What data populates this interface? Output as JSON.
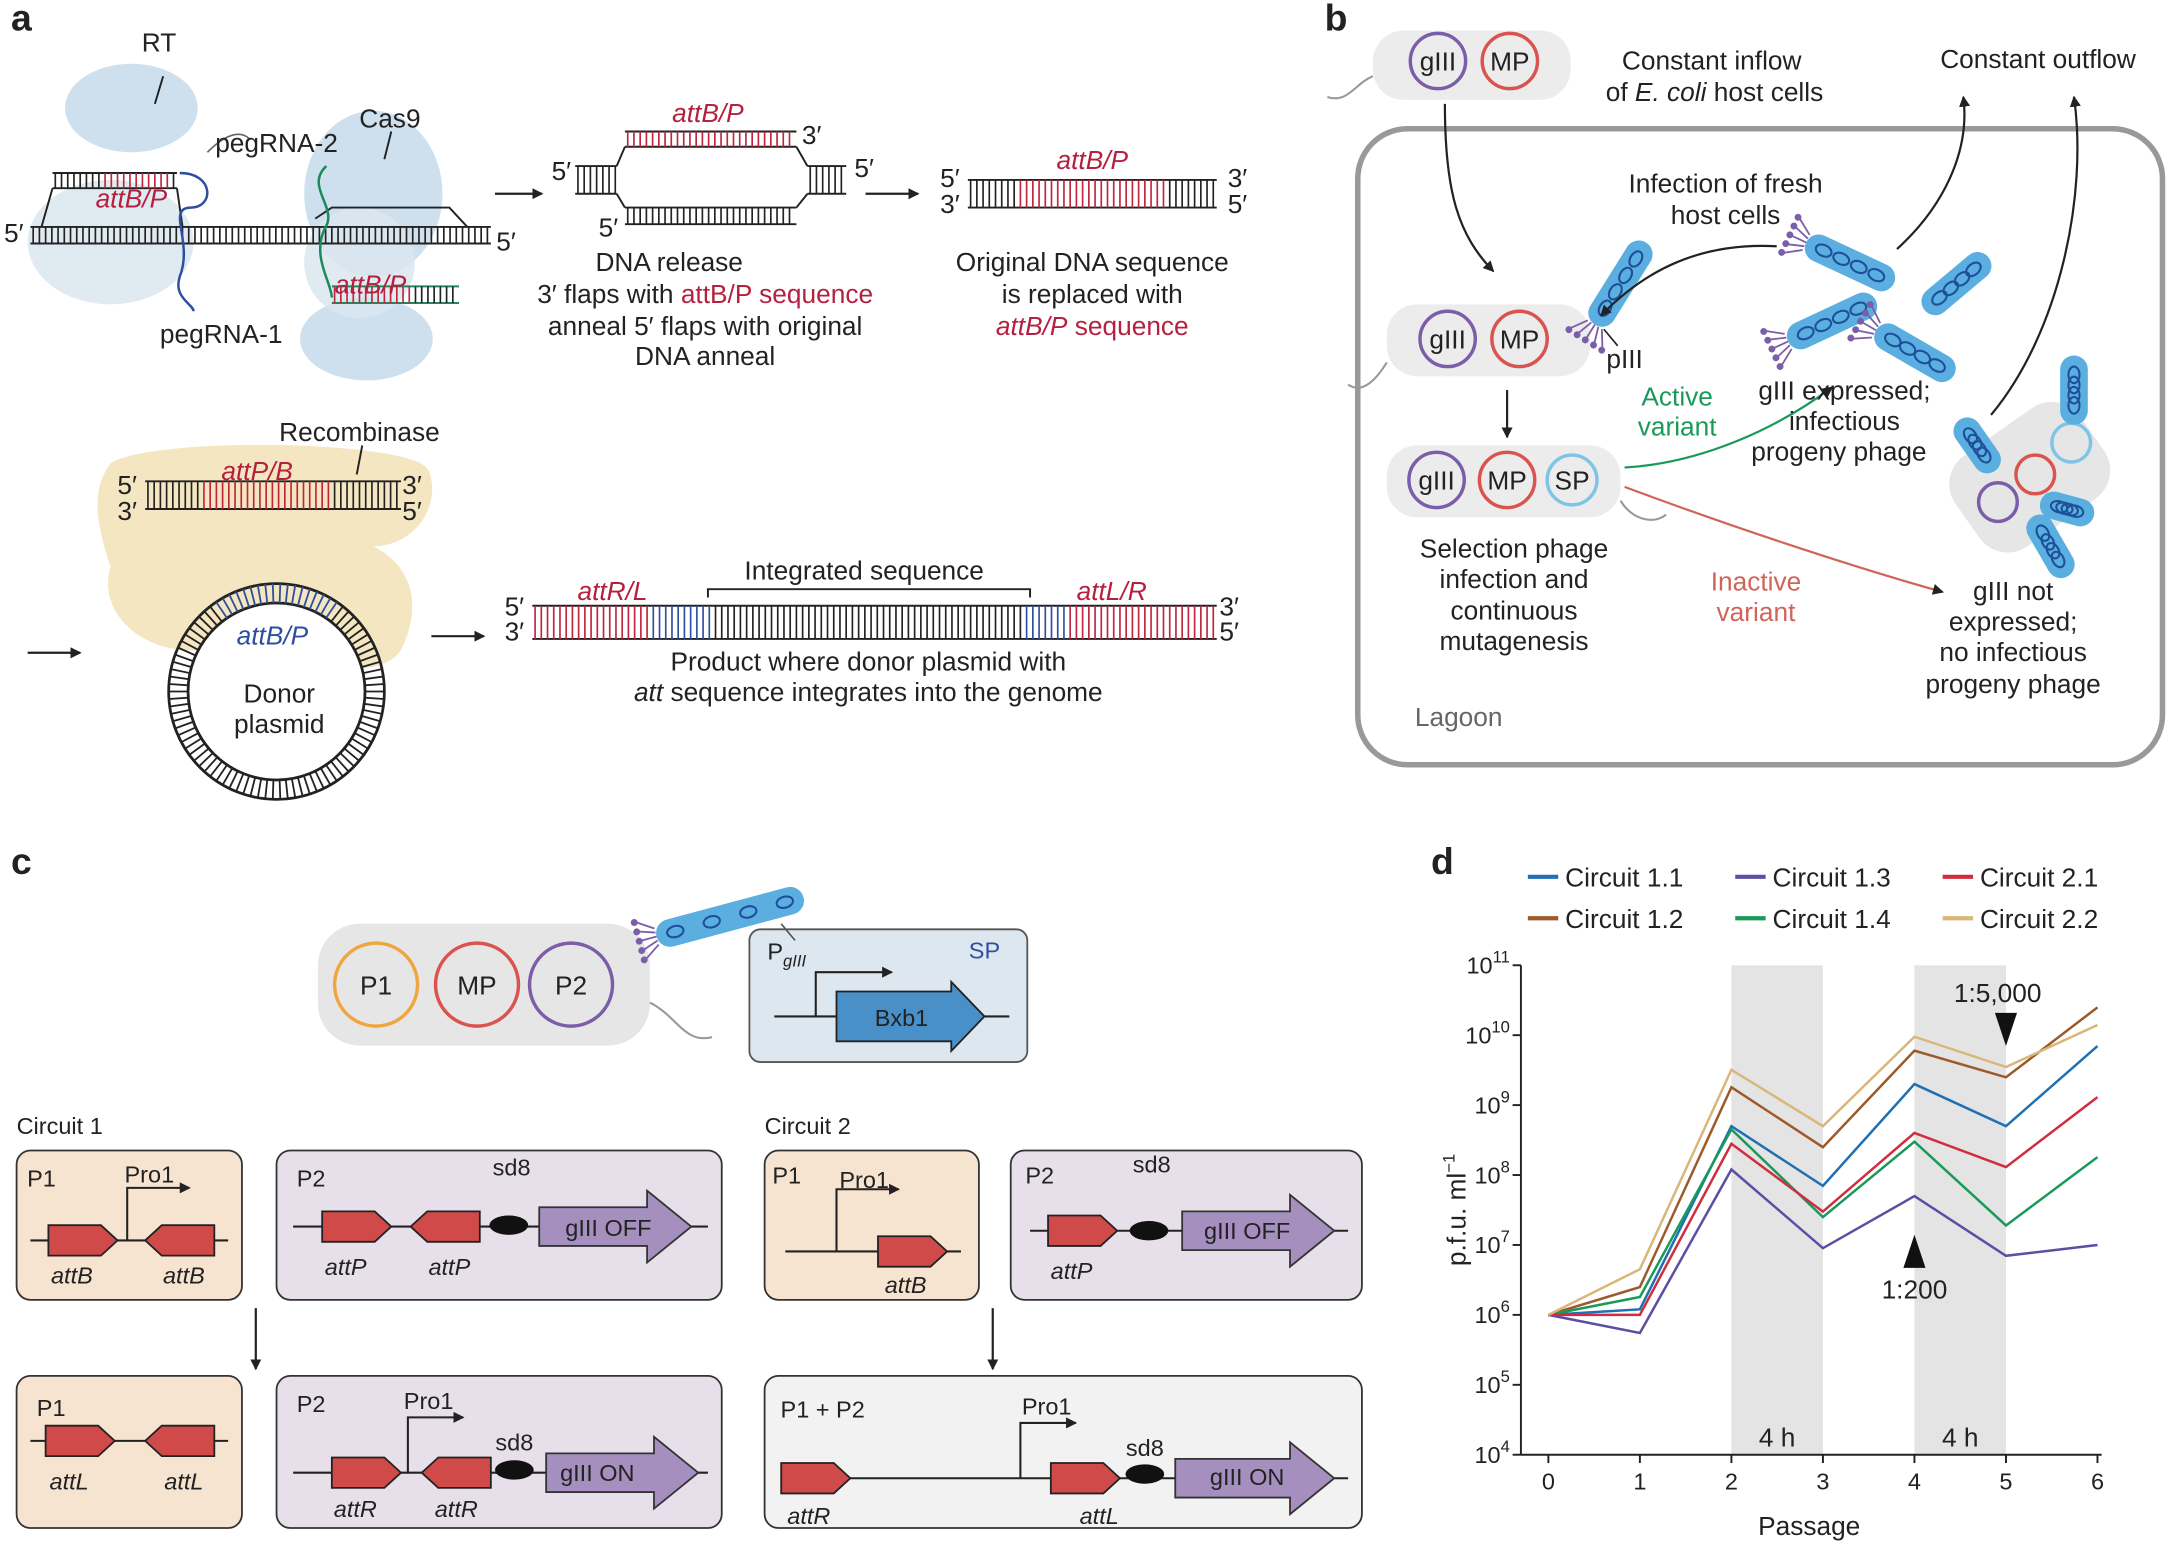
{
  "panel_a": {
    "label": "a",
    "editing": {
      "rt": "RT",
      "cas9": "Cas9",
      "pegrna_2": "pegRNA-2",
      "pegrna_1": "pegRNA-1",
      "sites": [
        "attB/P",
        "attB/P"
      ],
      "ends": [
        "5′",
        "5′"
      ]
    },
    "release": {
      "site": "attB/P",
      "ends": [
        "3′",
        "5′",
        "5′",
        "5′"
      ],
      "caption": [
        "DNA release",
        [
          "3′ flaps with ",
          "attB/P sequence"
        ],
        "anneal 5′ flaps with original",
        "DNA anneal"
      ]
    },
    "replaced": {
      "site": "attB/P",
      "ends": [
        "5′",
        "3′",
        "3′",
        "5′"
      ],
      "caption": [
        "Original DNA sequence",
        "is replaced with",
        [
          "attB/P",
          " sequence"
        ]
      ]
    },
    "recombination": {
      "recombinase": "Recombinase",
      "site": "attP/B",
      "ends": [
        "5′",
        "3′",
        "3′",
        "5′"
      ],
      "plasmid_site": "attB/P",
      "plasmid": [
        "Donor",
        "plasmid"
      ]
    },
    "product": {
      "integrated": "Integrated sequence",
      "sites": [
        "attR/L",
        "attL/R"
      ],
      "ends": [
        "5′",
        "3′",
        "3′",
        "5′"
      ],
      "caption": [
        "Product where donor plasmid with",
        [
          "att",
          " sequence integrates into the genome"
        ]
      ]
    }
  },
  "panel_b": {
    "label": "b",
    "inflow_cell": [
      "gIII",
      "MP"
    ],
    "inflow": [
      "Constant inflow",
      [
        "of ",
        "E. coli",
        " host cells"
      ]
    ],
    "outflow": "Constant outflow",
    "infection": [
      "Infection of fresh",
      "host cells"
    ],
    "host_cell": [
      "gIII",
      "MP"
    ],
    "piii": "pIII",
    "selection_cell": [
      "gIII",
      "MP",
      "SP"
    ],
    "active": [
      "Active",
      "variant"
    ],
    "expressed": [
      "gIII expressed;",
      "infectious",
      "progeny phage"
    ],
    "selection": [
      "Selection phage",
      "infection and",
      "continuous",
      "mutagenesis"
    ],
    "inactive": [
      "Inactive",
      "variant"
    ],
    "not_expressed": [
      "gIII not",
      "expressed;",
      "no infectious",
      "progeny phage"
    ],
    "lagoon": "Lagoon"
  },
  "panel_c": {
    "label": "c",
    "cell": [
      "P1",
      "MP",
      "P2"
    ],
    "sp": {
      "promoter": [
        "P",
        "gIII"
      ],
      "name": "SP",
      "gene": "Bxb1"
    },
    "circuit_1": {
      "title": "Circuit 1",
      "p1_before": {
        "name": "P1",
        "promoter": "Pro1",
        "sites": [
          "attB",
          "attB"
        ]
      },
      "p2_before": {
        "name": "P2",
        "rbs": "sd8",
        "gene": "gIII OFF",
        "sites": [
          "attP",
          "attP"
        ]
      },
      "p1_after": {
        "name": "P1",
        "sites": [
          "attL",
          "attL"
        ]
      },
      "p2_after": {
        "name": "P2",
        "promoter": "Pro1",
        "rbs": "sd8",
        "gene": "gIII ON",
        "sites": [
          "attR",
          "attR"
        ]
      }
    },
    "circuit_2": {
      "title": "Circuit 2",
      "p1_before": {
        "name": "P1",
        "promoter": "Pro1",
        "sites": [
          "attB"
        ]
      },
      "p2_before": {
        "name": "P2",
        "rbs": "sd8",
        "gene": "gIII OFF",
        "sites": [
          "attP"
        ]
      },
      "merged": {
        "name": "P1 + P2",
        "promoter": "Pro1",
        "rbs": "sd8",
        "gene": "gIII ON",
        "sites": [
          "attR",
          "attL"
        ]
      }
    }
  },
  "chart_data": {
    "type": "line",
    "panel_label": "d",
    "x": [
      0,
      1,
      2,
      3,
      4,
      5,
      6
    ],
    "xlim": [
      -0.3,
      6
    ],
    "xticks": [
      0,
      1,
      2,
      3,
      4,
      5,
      6
    ],
    "xlabel": "Passage",
    "ylabel": "p.f.u. ml",
    "ylabel_exponent": "−1",
    "log_scale": true,
    "ylim": [
      10000,
      100000000000
    ],
    "yticks": [
      {
        "value": 10000,
        "label": "10",
        "power": "4"
      },
      {
        "value": 100000,
        "label": "10",
        "power": "5"
      },
      {
        "value": 1000000,
        "label": "10",
        "power": "6"
      },
      {
        "value": 10000000,
        "label": "10",
        "power": "7"
      },
      {
        "value": 100000000,
        "label": "10",
        "power": "8"
      },
      {
        "value": 1000000000,
        "label": "10",
        "power": "9"
      },
      {
        "value": 10000000000,
        "label": "10",
        "power": "10"
      },
      {
        "value": 100000000000,
        "label": "10",
        "power": "11"
      }
    ],
    "shaded": [
      {
        "range": [
          2,
          3
        ],
        "label": "4 h"
      },
      {
        "range": [
          4,
          5
        ],
        "label": "4 h"
      }
    ],
    "annotations": [
      {
        "text": "1:5,000",
        "x": 5,
        "y": 7000000000,
        "direction": "down"
      },
      {
        "text": "1:200",
        "x": 4,
        "y": 14000000,
        "direction": "up"
      }
    ],
    "series": [
      {
        "name": "Circuit 1.1",
        "color": "#1f6fb5",
        "values": [
          1000000,
          1200000,
          500000000,
          70000000,
          2000000000,
          500000000,
          7000000000
        ]
      },
      {
        "name": "Circuit 1.2",
        "color": "#9c5a2a",
        "values": [
          1000000,
          2500000,
          1800000000,
          250000000,
          6000000000,
          2500000000,
          25000000000
        ]
      },
      {
        "name": "Circuit 1.3",
        "color": "#5b4ea3",
        "values": [
          1000000,
          550000,
          120000000,
          9000000,
          50000000,
          7000000,
          10000000
        ]
      },
      {
        "name": "Circuit 1.4",
        "color": "#1a9a5a",
        "values": [
          1000000,
          1800000,
          450000000,
          25000000,
          300000000,
          19000000,
          180000000
        ]
      },
      {
        "name": "Circuit 2.1",
        "color": "#d02e3e",
        "values": [
          1000000,
          1000000,
          280000000,
          30000000,
          400000000,
          130000000,
          1300000000
        ]
      },
      {
        "name": "Circuit 2.2",
        "color": "#d9b77a",
        "values": [
          1000000,
          4500000,
          3200000000,
          500000000,
          9500000000,
          3500000000,
          14000000000
        ]
      }
    ]
  }
}
